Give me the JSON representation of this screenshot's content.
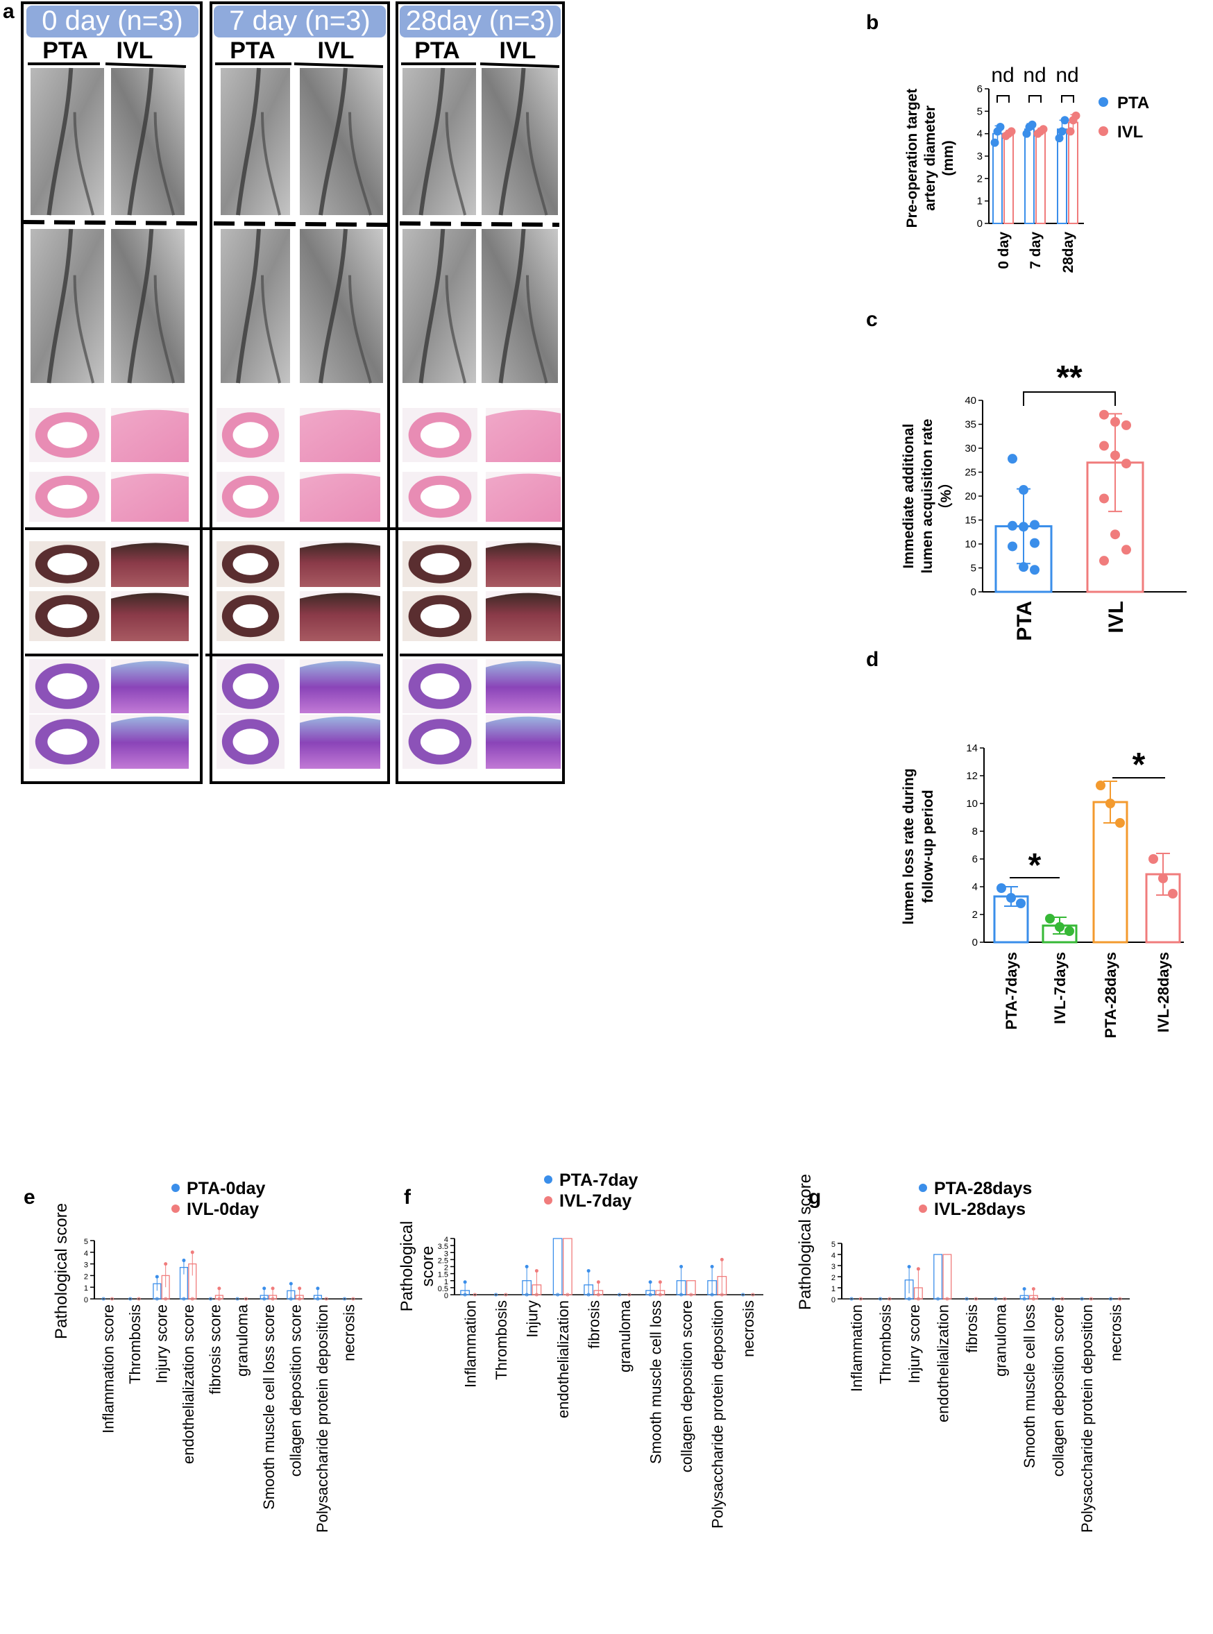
{
  "panel_a": {
    "letter": "a",
    "headers": [
      "0 day (n=3)",
      "7 day (n=3)",
      "28day (n=3)"
    ],
    "group_labels": [
      "PTA",
      "IVL"
    ],
    "header_color": "#8FAADC"
  },
  "colors": {
    "pta": "#3A8EEA",
    "ivl": "#F07C7C",
    "pta7": "#3A8EEA",
    "ivl7": "#36B836",
    "pta28": "#F39A2E",
    "ivl28": "#F07C7C"
  },
  "chart_data": [
    {
      "id": "b",
      "letter": "b",
      "type": "bar",
      "ylabel": "Pre-operation target artery diameter (mm)",
      "ylabel_lines": [
        "Pre-operation target",
        "artery diameter",
        "(mm)"
      ],
      "categories": [
        "0 day",
        "7 day",
        "28day"
      ],
      "ylim": [
        0,
        6
      ],
      "yticks": [
        "0",
        "1",
        "2",
        "3",
        "4",
        "5",
        "6"
      ],
      "legend": [
        "PTA",
        "IVL"
      ],
      "series": [
        {
          "name": "PTA",
          "values": [
            4.0,
            4.2,
            4.2
          ],
          "err": [
            0.35,
            0.25,
            0.4
          ],
          "points": [
            [
              3.6,
              4.1,
              4.3
            ],
            [
              4.0,
              4.3,
              4.4
            ],
            [
              3.8,
              4.1,
              4.6
            ]
          ]
        },
        {
          "name": "IVL",
          "values": [
            4.0,
            4.1,
            4.5
          ],
          "err": [
            0.15,
            0.15,
            0.35
          ],
          "points": [
            [
              3.9,
              4.0,
              4.1
            ],
            [
              4.0,
              4.1,
              4.2
            ],
            [
              4.1,
              4.6,
              4.8
            ]
          ]
        }
      ],
      "annotations": [
        "nd",
        "nd",
        "nd"
      ]
    },
    {
      "id": "c",
      "letter": "c",
      "type": "bar",
      "ylabel": "Immediate additional lumen acquisition rate (%)",
      "ylabel_lines": [
        "Immediate additional",
        "lumen acquisition rate",
        "（%）"
      ],
      "categories": [
        "PTA",
        "IVL"
      ],
      "ylim": [
        0,
        40
      ],
      "yticks": [
        "0",
        "5",
        "10",
        "15",
        "20",
        "25",
        "30",
        "35",
        "40"
      ],
      "values": [
        13.7,
        27.0
      ],
      "err": [
        7.8,
        10.2
      ],
      "points": [
        [
          27.8,
          21.3,
          14.0,
          13.8,
          13.6,
          10.2,
          9.5,
          5.2,
          4.6
        ],
        [
          37.0,
          35.5,
          34.8,
          30.5,
          28.5,
          26.8,
          19.5,
          12.0,
          8.8,
          6.5
        ]
      ],
      "annotation": "**"
    },
    {
      "id": "d",
      "letter": "d",
      "type": "bar",
      "ylabel": "lumen loss rate during follow-up period",
      "ylabel_lines": [
        "lumen loss rate during",
        "follow-up period"
      ],
      "categories": [
        "PTA-7days",
        "IVL-7days",
        "PTA-28days",
        "IVL-28days"
      ],
      "ylim": [
        0,
        14
      ],
      "yticks": [
        "0",
        "2",
        "4",
        "6",
        "8",
        "10",
        "12",
        "14"
      ],
      "values": [
        3.3,
        1.2,
        10.1,
        4.9
      ],
      "err": [
        0.7,
        0.6,
        1.5,
        1.5
      ],
      "points": [
        [
          3.9,
          3.2,
          2.8
        ],
        [
          1.7,
          1.1,
          0.8
        ],
        [
          11.3,
          10.0,
          8.6
        ],
        [
          6.0,
          4.6,
          3.5
        ]
      ],
      "annotations": [
        "*",
        "*"
      ]
    },
    {
      "id": "e",
      "letter": "e",
      "type": "bar",
      "ylabel": "Pathological score",
      "ylabel_lines": [
        "Pathological score"
      ],
      "legend": [
        "PTA-0day",
        "IVL-0day"
      ],
      "categories": [
        "Inflammation score",
        "Thrombosis",
        "Injury score",
        "endothelialization score",
        "fibrosis score",
        "granuloma",
        "Smooth muscle cell loss score",
        "collagen deposition score",
        "Polysaccharide protein deposition",
        "necrosis"
      ],
      "ylim": [
        0,
        5
      ],
      "yticks": [
        "0",
        "1",
        "2",
        "3",
        "4",
        "5"
      ],
      "series": [
        {
          "name": "PTA-0day",
          "values": [
            0,
            0,
            1.3,
            2.7,
            0,
            0,
            0.3,
            0.7,
            0.3,
            0
          ],
          "err": [
            0,
            0,
            0.6,
            0.6,
            0,
            0,
            0.6,
            0.6,
            0.6,
            0
          ]
        },
        {
          "name": "IVL-0day",
          "values": [
            0,
            0,
            2.0,
            3.0,
            0.3,
            0,
            0.3,
            0.3,
            0,
            0
          ],
          "err": [
            0,
            0,
            1.0,
            1.0,
            0.6,
            0,
            0.6,
            0.6,
            0,
            0
          ]
        }
      ]
    },
    {
      "id": "f",
      "letter": "f",
      "type": "bar",
      "ylabel": "Pathological score",
      "ylabel_lines": [
        "Pathological",
        "score"
      ],
      "legend": [
        "PTA-7day",
        "IVL-7day"
      ],
      "categories": [
        "Inflammation",
        "Thrombosis",
        "Injury",
        "endothelialization",
        "fibrosis",
        "granuloma",
        "Smooth muscle cell loss",
        "collagen deposition score",
        "Polysaccharide protein deposition",
        "necrosis"
      ],
      "ylim": [
        0,
        4
      ],
      "yticks": [
        "0",
        "0.5",
        "1",
        "1.5",
        "2",
        "2.5",
        "3",
        "3.5",
        "4"
      ],
      "series": [
        {
          "name": "PTA-7day",
          "values": [
            0.3,
            0,
            1.0,
            4.0,
            0.7,
            0,
            0.3,
            1.0,
            1.0,
            0
          ],
          "err": [
            0.6,
            0,
            1.0,
            0,
            1.0,
            0,
            0.6,
            1.0,
            1.0,
            0
          ]
        },
        {
          "name": "IVL-7day",
          "values": [
            0,
            0,
            0.7,
            4.0,
            0.3,
            0,
            0.3,
            1.0,
            1.3,
            0
          ],
          "err": [
            0,
            0,
            1.0,
            0,
            0.6,
            0,
            0.6,
            0,
            1.2,
            0
          ]
        }
      ]
    },
    {
      "id": "g",
      "letter": "g",
      "type": "bar",
      "ylabel": "Pathological score",
      "ylabel_lines": [
        "Pathological score"
      ],
      "legend": [
        "PTA-28days",
        "IVL-28days"
      ],
      "categories": [
        "Inflammation",
        "Thrombosis",
        "Injury score",
        "endothelialization",
        "fibrosis",
        "granuloma",
        "Smooth muscle cell loss",
        "collagen deposition score",
        "Polysaccharide protein deposition",
        "necrosis"
      ],
      "ylim": [
        0,
        5
      ],
      "yticks": [
        "0",
        "1",
        "2",
        "3",
        "4",
        "5"
      ],
      "series": [
        {
          "name": "PTA-28days",
          "values": [
            0,
            0,
            1.7,
            4.0,
            0,
            0,
            0.3,
            0,
            0,
            0
          ],
          "err": [
            0,
            0,
            1.2,
            0,
            0,
            0,
            0.6,
            0,
            0,
            0
          ]
        },
        {
          "name": "IVL-28days",
          "values": [
            0,
            0,
            1.0,
            4.0,
            0,
            0,
            0.3,
            0,
            0,
            0
          ],
          "err": [
            0,
            0,
            1.7,
            0,
            0,
            0,
            0.6,
            0,
            0,
            0
          ]
        }
      ]
    }
  ]
}
